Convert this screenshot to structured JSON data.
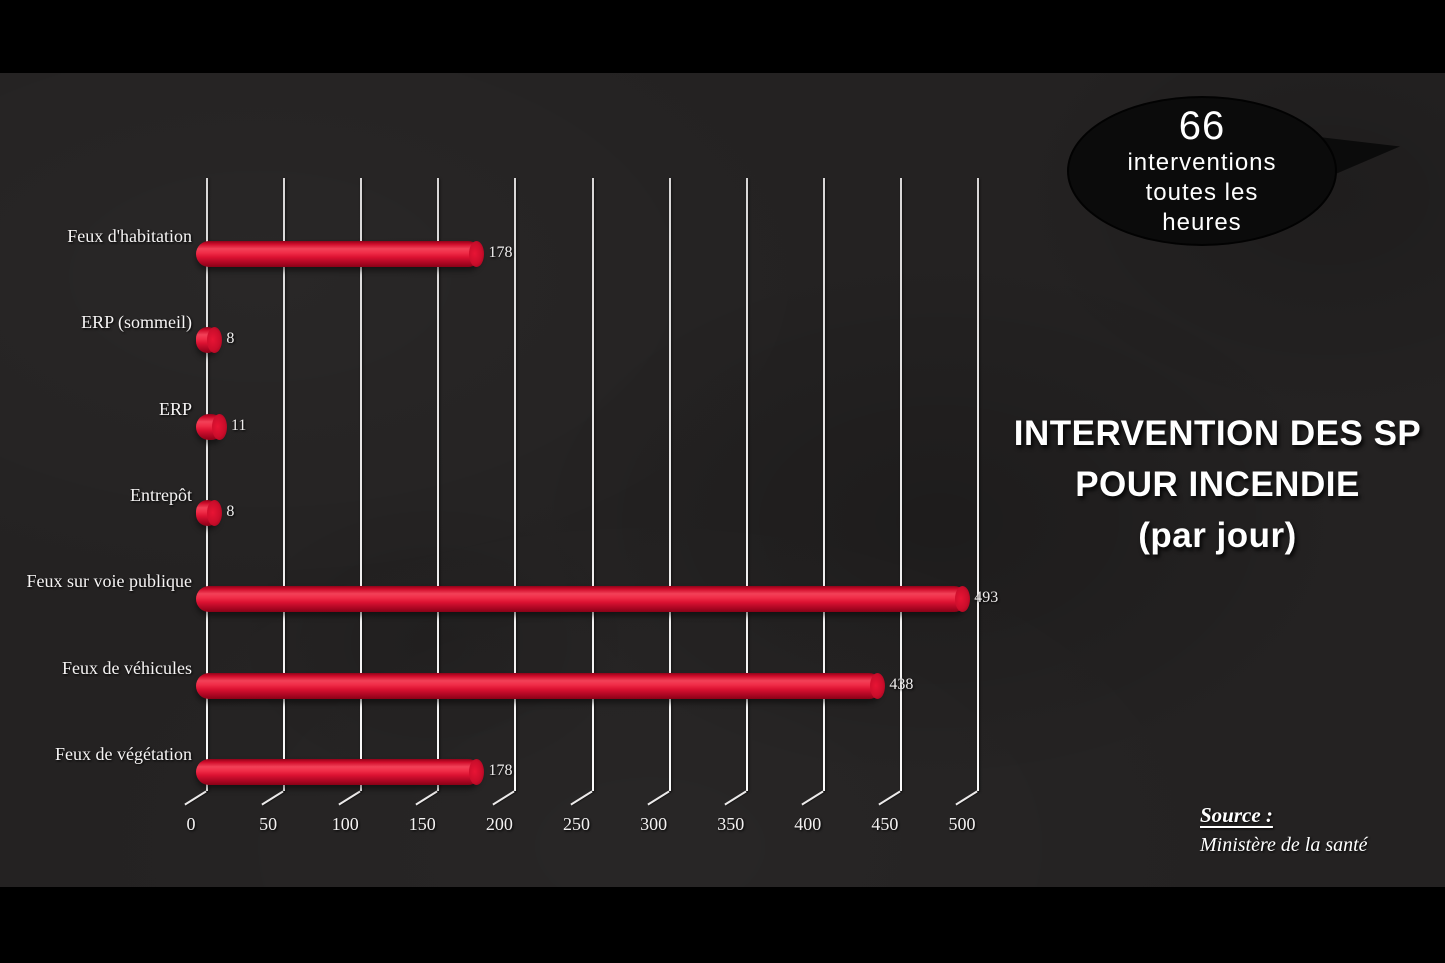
{
  "slide": {
    "background_color": "#242222",
    "letterbox_color": "#000000",
    "title": {
      "lines": [
        "INTERVENTION DES SP",
        "POUR INCENDIE",
        "(par jour)"
      ],
      "color": "#ffffff"
    },
    "bubble": {
      "lines": [
        "66",
        "interventions",
        "toutes les",
        "heures"
      ],
      "fill": "#0b0b0b",
      "text_color": "#ffffff"
    },
    "source": {
      "label": "Source :",
      "text": "Ministère de la santé",
      "color": "#ffffff"
    }
  },
  "chart_data": {
    "type": "bar",
    "orientation": "horizontal",
    "style": "3d-cylinder",
    "title": "INTERVENTION DES SP POUR INCENDIE (par jour)",
    "categories": [
      "Feux d'habitation",
      "ERP (sommeil)",
      "ERP",
      "Entrepôt",
      "Feux sur voie publique",
      "Feux de véhicules",
      "Feux de végétation"
    ],
    "values": [
      178,
      8,
      11,
      8,
      493,
      438,
      178
    ],
    "data_labels": [
      "178",
      "8",
      "11",
      "8",
      "493",
      "438",
      "178"
    ],
    "xlim": [
      0,
      500
    ],
    "xticks": [
      0,
      50,
      100,
      150,
      200,
      250,
      300,
      350,
      400,
      450,
      500
    ],
    "xlabel": "",
    "ylabel": "",
    "legend": false,
    "grid": true,
    "bar_color": "#e01030",
    "gridline_color": "#f2f0f0",
    "text_color": "#f5f3f3",
    "annotation": "66 interventions toutes les heures"
  }
}
